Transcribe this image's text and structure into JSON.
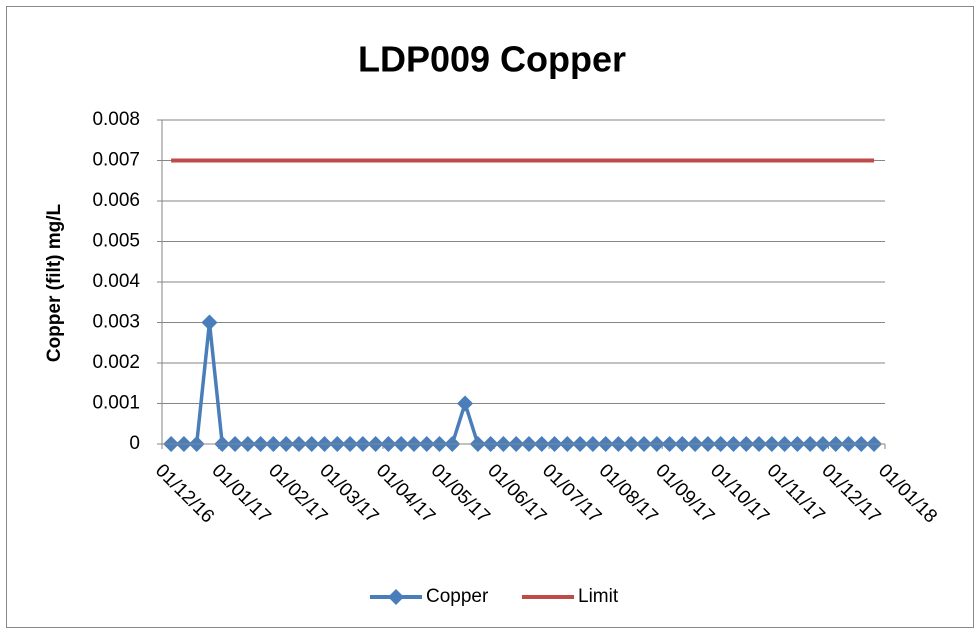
{
  "chart_data": {
    "type": "line",
    "title": "LDP009 Copper",
    "y_label": "Copper (filt) mg/L",
    "x": [
      "2016-12-06",
      "2016-12-13",
      "2016-12-20",
      "2016-12-27",
      "2017-01-03",
      "2017-01-10",
      "2017-01-17",
      "2017-01-24",
      "2017-01-31",
      "2017-02-07",
      "2017-02-14",
      "2017-02-21",
      "2017-02-28",
      "2017-03-07",
      "2017-03-14",
      "2017-03-21",
      "2017-03-28",
      "2017-04-04",
      "2017-04-11",
      "2017-04-18",
      "2017-04-25",
      "2017-05-02",
      "2017-05-09",
      "2017-05-16",
      "2017-05-23",
      "2017-05-30",
      "2017-06-06",
      "2017-06-13",
      "2017-06-20",
      "2017-06-27",
      "2017-07-04",
      "2017-07-11",
      "2017-07-18",
      "2017-07-25",
      "2017-08-01",
      "2017-08-08",
      "2017-08-15",
      "2017-08-22",
      "2017-08-29",
      "2017-09-05",
      "2017-09-12",
      "2017-09-19",
      "2017-09-26",
      "2017-10-03",
      "2017-10-10",
      "2017-10-17",
      "2017-10-24",
      "2017-10-31",
      "2017-11-07",
      "2017-11-14",
      "2017-11-21",
      "2017-11-28",
      "2017-12-05",
      "2017-12-12",
      "2017-12-19",
      "2017-12-26"
    ],
    "series": [
      {
        "name": "Copper",
        "color": "#4a7ebb",
        "marker": "diamond",
        "values": [
          0,
          0,
          0,
          0.003,
          0,
          0,
          0,
          0,
          0,
          0,
          0,
          0,
          0,
          0,
          0,
          0,
          0,
          0,
          0,
          0,
          0,
          0,
          0,
          0.001,
          0,
          0,
          0,
          0,
          0,
          0,
          0,
          0,
          0,
          0,
          0,
          0,
          0,
          0,
          0,
          0,
          0,
          0,
          0,
          0,
          0,
          0,
          0,
          0,
          0,
          0,
          0,
          0,
          0,
          0,
          0,
          0
        ]
      },
      {
        "name": "Limit",
        "color": "#be4b48",
        "values": [
          0.007,
          0.007,
          0.007,
          0.007,
          0.007,
          0.007,
          0.007,
          0.007,
          0.007,
          0.007,
          0.007,
          0.007,
          0.007,
          0.007,
          0.007,
          0.007,
          0.007,
          0.007,
          0.007,
          0.007,
          0.007,
          0.007,
          0.007,
          0.007,
          0.007,
          0.007,
          0.007,
          0.007,
          0.007,
          0.007,
          0.007,
          0.007,
          0.007,
          0.007,
          0.007,
          0.007,
          0.007,
          0.007,
          0.007,
          0.007,
          0.007,
          0.007,
          0.007,
          0.007,
          0.007,
          0.007,
          0.007,
          0.007,
          0.007,
          0.007,
          0.007,
          0.007,
          0.007,
          0.007,
          0.007,
          0.007
        ]
      }
    ],
    "xlim": [
      "2016-12-01",
      "2018-01-01"
    ],
    "xticks": [
      {
        "value": "2016-12-01",
        "label": "01/12/16"
      },
      {
        "value": "2017-01-01",
        "label": "01/01/17"
      },
      {
        "value": "2017-02-01",
        "label": "01/02/17"
      },
      {
        "value": "2017-03-01",
        "label": "01/03/17"
      },
      {
        "value": "2017-04-01",
        "label": "01/04/17"
      },
      {
        "value": "2017-05-01",
        "label": "01/05/17"
      },
      {
        "value": "2017-06-01",
        "label": "01/06/17"
      },
      {
        "value": "2017-07-01",
        "label": "01/07/17"
      },
      {
        "value": "2017-08-01",
        "label": "01/08/17"
      },
      {
        "value": "2017-09-01",
        "label": "01/09/17"
      },
      {
        "value": "2017-10-01",
        "label": "01/10/17"
      },
      {
        "value": "2017-11-01",
        "label": "01/11/17"
      },
      {
        "value": "2017-12-01",
        "label": "01/12/17"
      },
      {
        "value": "2018-01-01",
        "label": "01/01/18"
      }
    ],
    "ylim": [
      0,
      0.008
    ],
    "yticks": [
      0,
      0.001,
      0.002,
      0.003,
      0.004,
      0.005,
      0.006,
      0.007,
      0.008
    ],
    "grid": true,
    "legend": "bottom"
  }
}
